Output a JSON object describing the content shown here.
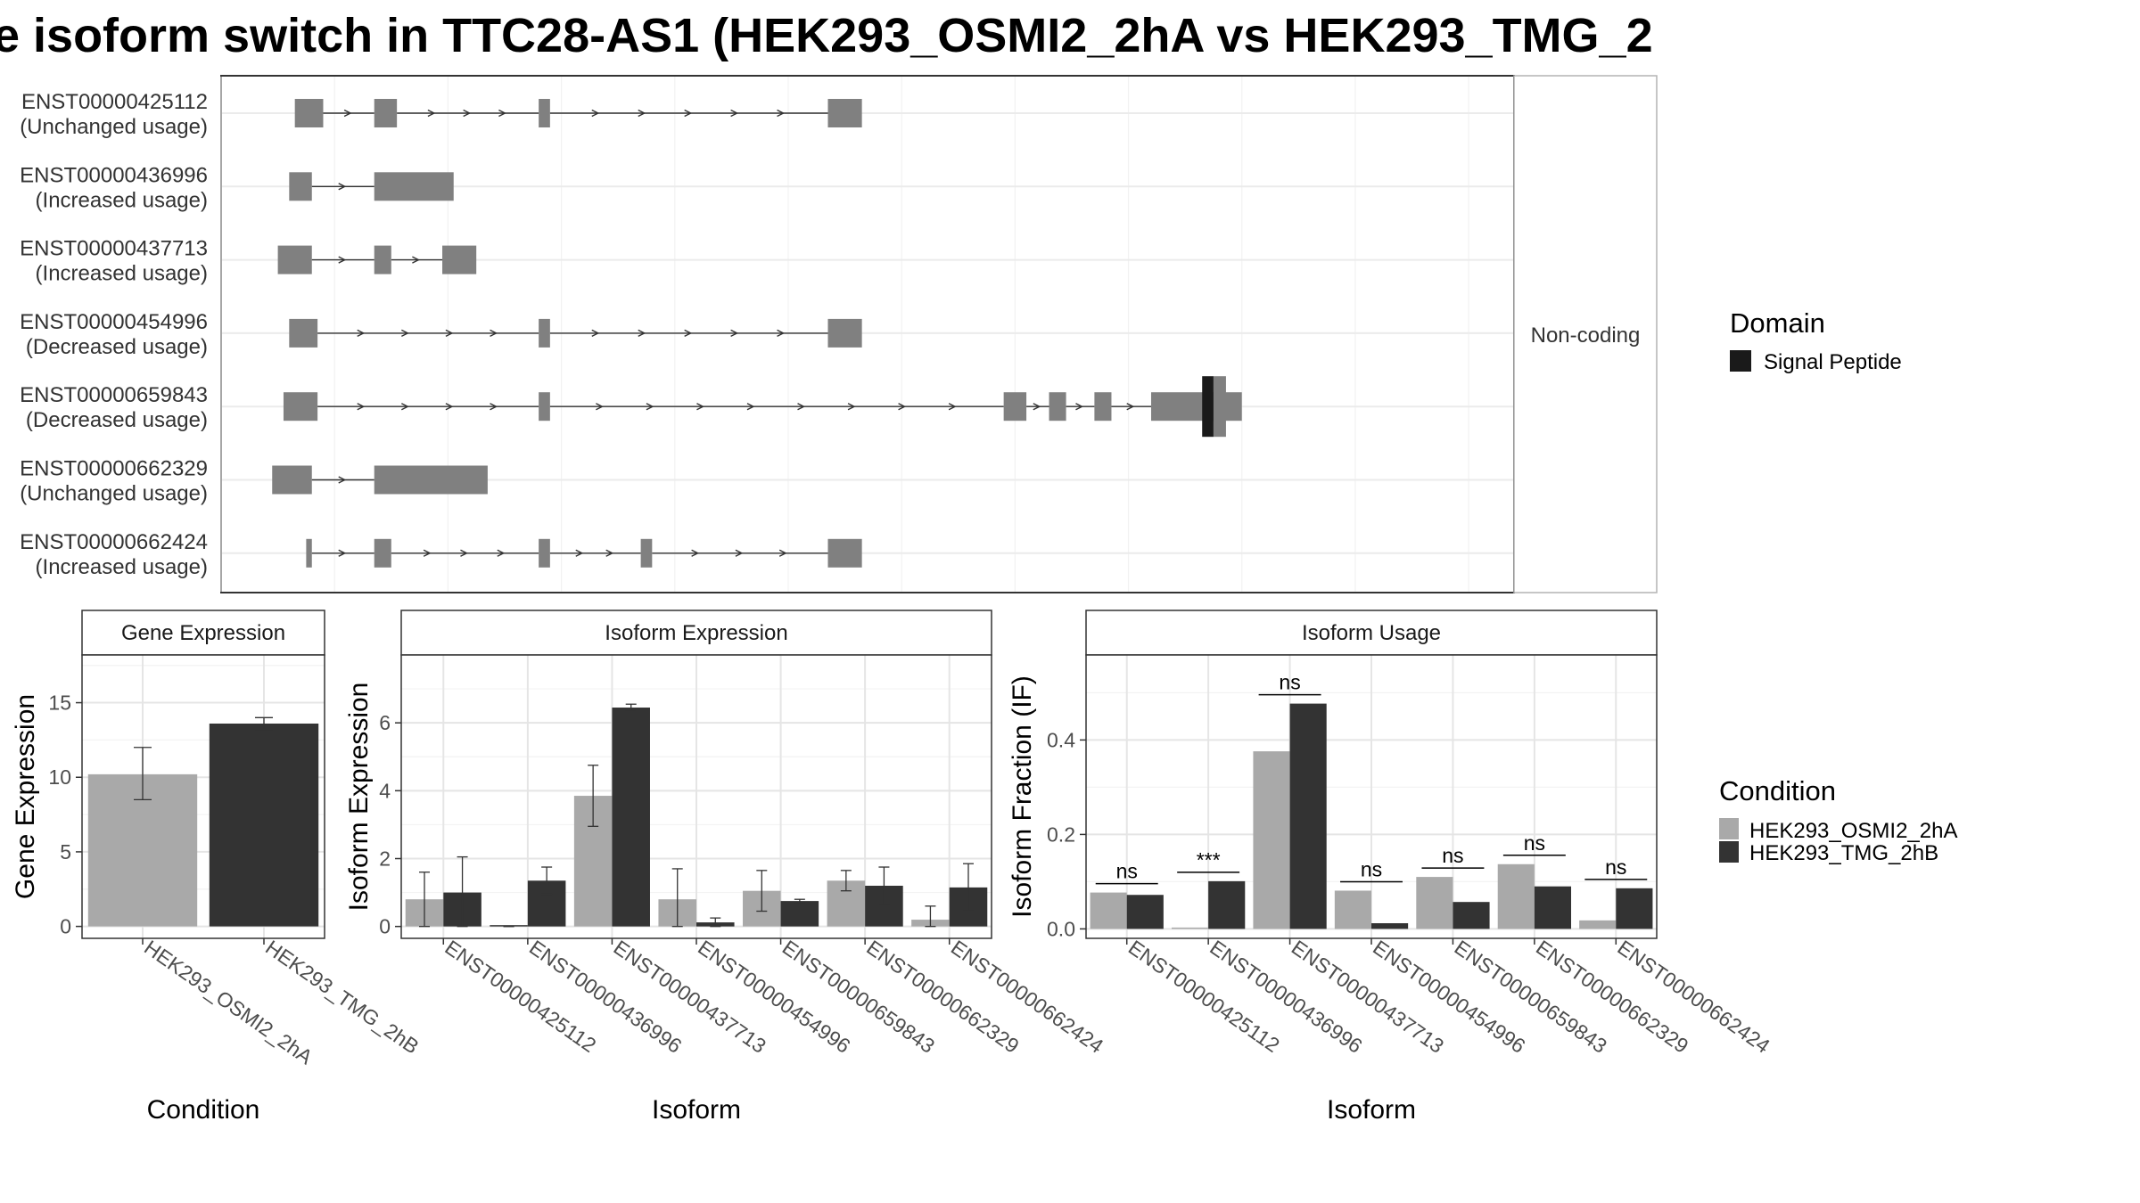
{
  "title": "e isoform switch in TTC28-AS1 (HEK293_OSMI2_2hA vs HEK293_TMG_2",
  "transcript_panel": {
    "facet_label": "Non-coding",
    "transcripts": [
      {
        "id": "ENST00000425112",
        "usage": "(Unchanged usage)",
        "exons": [
          [
            3,
            8
          ],
          [
            17,
            21
          ],
          [
            46,
            48
          ],
          [
            97,
            103
          ]
        ]
      },
      {
        "id": "ENST00000436996",
        "usage": "(Increased usage)",
        "exons": [
          [
            2,
            6
          ],
          [
            17,
            31
          ]
        ]
      },
      {
        "id": "ENST00000437713",
        "usage": "(Increased usage)",
        "exons": [
          [
            0,
            6
          ],
          [
            17,
            20
          ],
          [
            29,
            35
          ]
        ]
      },
      {
        "id": "ENST00000454996",
        "usage": "(Decreased usage)",
        "exons": [
          [
            2,
            7
          ],
          [
            46,
            48
          ],
          [
            97,
            103
          ]
        ]
      },
      {
        "id": "ENST00000659843",
        "usage": "(Decreased usage)",
        "exons": [
          [
            1,
            7
          ],
          [
            46,
            48
          ],
          [
            128,
            132
          ],
          [
            136,
            139
          ],
          [
            144,
            147
          ],
          [
            154,
            170
          ]
        ],
        "domains": [
          [
            163,
            165
          ]
        ]
      },
      {
        "id": "ENST00000662329",
        "usage": "(Unchanged usage)",
        "exons": [
          [
            -1,
            6
          ],
          [
            17,
            37
          ]
        ]
      },
      {
        "id": "ENST00000662424",
        "usage": "(Increased usage)",
        "exons": [
          [
            5,
            6
          ],
          [
            17,
            20
          ],
          [
            46,
            48
          ],
          [
            64,
            66
          ],
          [
            97,
            103
          ]
        ]
      }
    ],
    "x_range": [
      -10,
      218
    ]
  },
  "legend_domain": {
    "title": "Domain",
    "items": [
      {
        "label": "Signal Peptide",
        "color": "#1a1a1a"
      }
    ]
  },
  "legend_condition": {
    "title": "Condition",
    "items": [
      {
        "label": "HEK293_OSMI2_2hA",
        "color": "#a9a9a9"
      },
      {
        "label": "HEK293_TMG_2hB",
        "color": "#333333"
      }
    ]
  },
  "chart_data": [
    {
      "type": "bar",
      "title": "Gene Expression",
      "xlabel": "Condition",
      "ylabel": "Gene Expression",
      "categories": [
        "HEK293_OSMI2_2hA",
        "HEK293_TMG_2hB"
      ],
      "values": [
        10.2,
        13.6
      ],
      "errors": [
        [
          8.5,
          12.0
        ],
        [
          13.2,
          14.0
        ]
      ],
      "ylim": [
        -0.8,
        18.2
      ],
      "yticks": [
        0,
        5,
        10,
        15
      ]
    },
    {
      "type": "bar",
      "title": "Isoform Expression",
      "xlabel": "Isoform",
      "ylabel": "Isoform Expression",
      "categories": [
        "ENST00000425112",
        "ENST00000436996",
        "ENST00000437713",
        "ENST00000454996",
        "ENST00000659843",
        "ENST00000662329",
        "ENST00000662424"
      ],
      "series": [
        {
          "name": "HEK293_OSMI2_2hA",
          "values": [
            0.8,
            0.0,
            3.85,
            0.8,
            1.05,
            1.35,
            0.2
          ],
          "errors": [
            [
              0.0,
              1.6
            ],
            [
              0.0,
              0.0
            ],
            [
              2.95,
              4.75
            ],
            [
              0.0,
              1.7
            ],
            [
              0.45,
              1.65
            ],
            [
              1.05,
              1.65
            ],
            [
              0.0,
              0.6
            ]
          ]
        },
        {
          "name": "HEK293_TMG_2hB",
          "values": [
            1.0,
            1.35,
            6.45,
            0.12,
            0.75,
            1.2,
            1.15
          ],
          "errors": [
            [
              0.0,
              2.05
            ],
            [
              0.95,
              1.75
            ],
            [
              6.35,
              6.55
            ],
            [
              0.0,
              0.25
            ],
            [
              0.7,
              0.8
            ],
            [
              0.65,
              1.75
            ],
            [
              0.45,
              1.85
            ]
          ]
        }
      ],
      "ylim": [
        -0.35,
        8.0
      ],
      "yticks": [
        0,
        2,
        4,
        6
      ]
    },
    {
      "type": "bar",
      "title": "Isoform Usage",
      "xlabel": "Isoform",
      "ylabel": "Isoform Fraction (IF)",
      "categories": [
        "ENST00000425112",
        "ENST00000436996",
        "ENST00000437713",
        "ENST00000454996",
        "ENST00000659843",
        "ENST00000662329",
        "ENST00000662424"
      ],
      "series": [
        {
          "name": "HEK293_OSMI2_2hA",
          "values": [
            0.077,
            0.0,
            0.376,
            0.081,
            0.11,
            0.137,
            0.018
          ]
        },
        {
          "name": "HEK293_TMG_2hB",
          "values": [
            0.072,
            0.101,
            0.477,
            0.012,
            0.057,
            0.09,
            0.086
          ]
        }
      ],
      "significance": [
        "ns",
        "***",
        "ns",
        "ns",
        "ns",
        "ns",
        "ns"
      ],
      "ylim": [
        -0.02,
        0.58
      ],
      "yticks": [
        0.0,
        0.2,
        0.4
      ],
      "ytick_labels": [
        "0.0",
        "0.2",
        "0.4"
      ]
    }
  ]
}
